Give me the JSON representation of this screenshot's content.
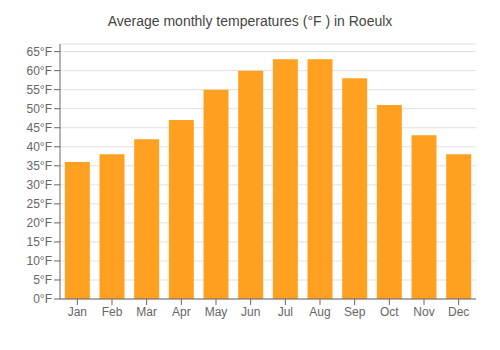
{
  "chart_data": {
    "type": "bar",
    "title": "Average monthly temperatures (°F ) in Roeulx",
    "categories": [
      "Jan",
      "Feb",
      "Mar",
      "Apr",
      "May",
      "Jun",
      "Jul",
      "Aug",
      "Sep",
      "Oct",
      "Nov",
      "Dec"
    ],
    "values": [
      36,
      38,
      42,
      47,
      55,
      60,
      63,
      63,
      58,
      51,
      43,
      38
    ],
    "color": "#FFA020",
    "ylim": [
      0,
      67
    ],
    "yticks": [
      {
        "value": 0,
        "label": "0°F"
      },
      {
        "value": 5,
        "label": "5°F"
      },
      {
        "value": 10,
        "label": "10°F"
      },
      {
        "value": 15,
        "label": "15°F"
      },
      {
        "value": 20,
        "label": "20°F"
      },
      {
        "value": 25,
        "label": "25°F"
      },
      {
        "value": 30,
        "label": "30°F"
      },
      {
        "value": 35,
        "label": "35°F"
      },
      {
        "value": 40,
        "label": "40°F"
      },
      {
        "value": 45,
        "label": "45°F"
      },
      {
        "value": 50,
        "label": "50°F"
      },
      {
        "value": 55,
        "label": "55°F"
      },
      {
        "value": 60,
        "label": "60°F"
      },
      {
        "value": 65,
        "label": "65°F"
      }
    ],
    "grid": true
  }
}
